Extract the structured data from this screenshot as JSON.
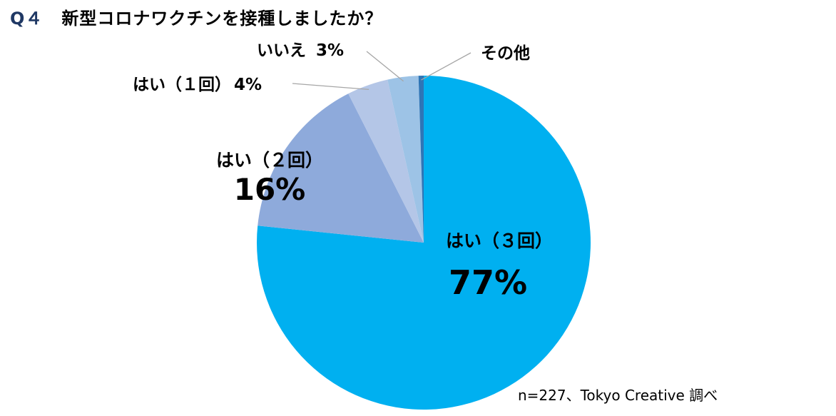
{
  "question": {
    "number": "Q４",
    "text": "新型コロナワクチンを接種しましたか？"
  },
  "chart_data": {
    "type": "pie",
    "title": "",
    "slices": [
      {
        "label": "はい（３回）",
        "value": 77,
        "pct_text": "77%",
        "color": "#00b0f0"
      },
      {
        "label": "はい（２回）",
        "value": 16,
        "pct_text": "16%",
        "color": "#8eaadb"
      },
      {
        "label": "はい（１回）",
        "value": 4,
        "pct_text": "4%",
        "color": "#b4c6e7"
      },
      {
        "label": "いいえ",
        "value": 3,
        "pct_text": "3%",
        "color": "#9dc3e6"
      },
      {
        "label": "その他",
        "value": 0.5,
        "pct_text": "",
        "color": "#2e75b6"
      }
    ]
  },
  "footer": "n=227、Tokyo Creative 調べ"
}
